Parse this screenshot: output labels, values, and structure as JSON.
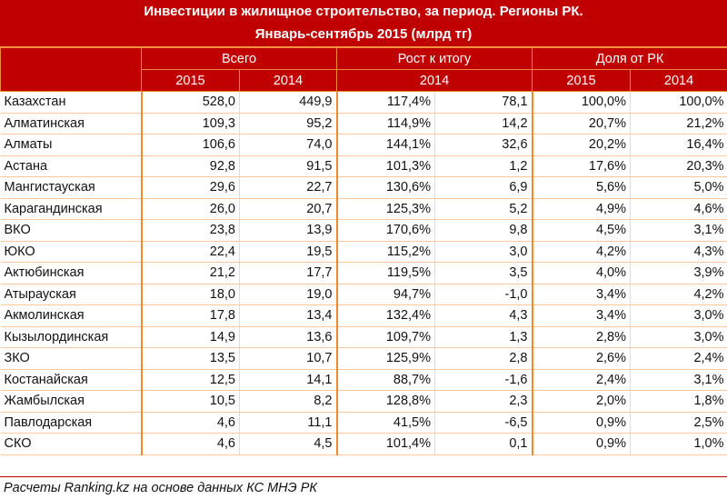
{
  "title": {
    "line1": "Инвестиции в жилищное строительство, за период. Регионы РК.",
    "line2": "Январь-сентябрь 2015 (млрд тг)"
  },
  "header": {
    "groups": [
      "Всего",
      "Рост к итогу",
      "Доля от РК"
    ],
    "subs": [
      "2015",
      "2014",
      "2014",
      "2015",
      "2014"
    ]
  },
  "rows": [
    [
      "Казахстан",
      "528,0",
      "449,9",
      "117,4%",
      "78,1",
      "100,0%",
      "100,0%"
    ],
    [
      "Алматинская",
      "109,3",
      "95,2",
      "114,9%",
      "14,2",
      "20,7%",
      "21,2%"
    ],
    [
      "Алматы",
      "106,6",
      "74,0",
      "144,1%",
      "32,6",
      "20,2%",
      "16,4%"
    ],
    [
      "Астана",
      "92,8",
      "91,5",
      "101,3%",
      "1,2",
      "17,6%",
      "20,3%"
    ],
    [
      "Мангистауская",
      "29,6",
      "22,7",
      "130,6%",
      "6,9",
      "5,6%",
      "5,0%"
    ],
    [
      "Карагандинская",
      "26,0",
      "20,7",
      "125,3%",
      "5,2",
      "4,9%",
      "4,6%"
    ],
    [
      "ВКО",
      "23,8",
      "13,9",
      "170,6%",
      "9,8",
      "4,5%",
      "3,1%"
    ],
    [
      "ЮКО",
      "22,4",
      "19,5",
      "115,2%",
      "3,0",
      "4,2%",
      "4,3%"
    ],
    [
      "Актюбинская",
      "21,2",
      "17,7",
      "119,5%",
      "3,5",
      "4,0%",
      "3,9%"
    ],
    [
      "Атырауская",
      "18,0",
      "19,0",
      "94,7%",
      "-1,0",
      "3,4%",
      "4,2%"
    ],
    [
      "Акмолинская",
      "17,8",
      "13,4",
      "132,4%",
      "4,3",
      "3,4%",
      "3,0%"
    ],
    [
      "Кызылординская",
      "14,9",
      "13,6",
      "109,7%",
      "1,3",
      "2,8%",
      "3,0%"
    ],
    [
      "ЗКО",
      "13,5",
      "10,7",
      "125,9%",
      "2,8",
      "2,6%",
      "2,4%"
    ],
    [
      "Костанайская",
      "12,5",
      "14,1",
      "88,7%",
      "-1,6",
      "2,4%",
      "3,1%"
    ],
    [
      "Жамбылская",
      "10,5",
      "8,2",
      "128,8%",
      "2,3",
      "2,0%",
      "1,8%"
    ],
    [
      "Павлодарская",
      "4,6",
      "11,1",
      "41,5%",
      "-6,5",
      "0,9%",
      "2,5%"
    ],
    [
      "СКО",
      "4,6",
      "4,5",
      "101,4%",
      "0,1",
      "0,9%",
      "1,0%"
    ]
  ],
  "footer": "Расчеты Ranking.kz на основе данных КС МНЭ РК",
  "colors": {
    "header_bg": "#c00000",
    "border": "#f08a30"
  }
}
